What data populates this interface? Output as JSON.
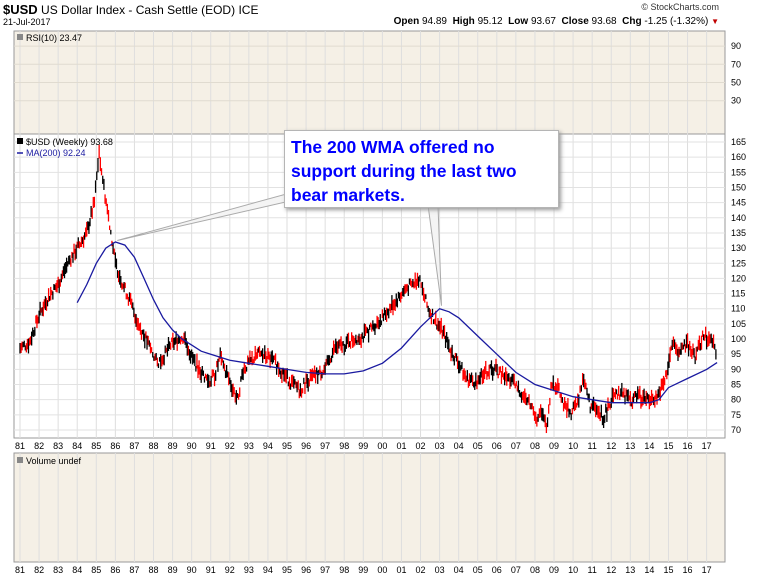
{
  "header": {
    "symbol": "$USD",
    "name": "US Dollar Index - Cash Settle (EOD)",
    "exchange": "ICE",
    "date": "21-Jul-2017",
    "credit": "© StockCharts.com",
    "open_label": "Open",
    "open": "94.89",
    "high_label": "High",
    "high": "95.12",
    "low_label": "Low",
    "low": "93.67",
    "close_label": "Close",
    "close": "93.68",
    "chg_label": "Chg",
    "chg": "-1.25 (-1.32%)"
  },
  "colors": {
    "price_up": "#000000",
    "price_down": "#ff0000",
    "ma": "#1a1aa0",
    "panel_bg": "#f5f0e6",
    "callout_text": "#0000ff"
  },
  "callout": {
    "lines": [
      "The 200 WMA offered no",
      "support during the last two",
      "bear markets."
    ]
  },
  "chart_data": [
    {
      "type": "line",
      "panel": "rsi",
      "legend": "RSI(10) 23.47",
      "ylim": [
        0,
        100
      ],
      "yticks": [
        30,
        50,
        70,
        90
      ],
      "series": []
    },
    {
      "type": "line",
      "panel": "price",
      "legend_title": "$USD (Weekly) 93.68",
      "legend_ma": "MA(200) 92.24",
      "ylim": [
        70,
        165
      ],
      "yticks": [
        70,
        75,
        80,
        85,
        90,
        95,
        100,
        105,
        110,
        115,
        120,
        125,
        130,
        135,
        140,
        145,
        150,
        155,
        160,
        165
      ],
      "x_tick_labels": [
        "81",
        "82",
        "83",
        "84",
        "85",
        "86",
        "87",
        "88",
        "89",
        "90",
        "91",
        "92",
        "93",
        "94",
        "95",
        "96",
        "97",
        "98",
        "99",
        "00",
        "01",
        "02",
        "03",
        "04",
        "05",
        "06",
        "07",
        "08",
        "09",
        "10",
        "11",
        "12",
        "13",
        "14",
        "15",
        "16",
        "17"
      ],
      "x_years": [
        1981,
        1982,
        1983,
        1984,
        1985,
        1986,
        1987,
        1988,
        1989,
        1990,
        1991,
        1992,
        1993,
        1994,
        1995,
        1996,
        1997,
        1998,
        1999,
        2000,
        2001,
        2002,
        2003,
        2004,
        2005,
        2006,
        2007,
        2008,
        2009,
        2010,
        2011,
        2012,
        2013,
        2014,
        2015,
        2016,
        2017
      ],
      "series": [
        {
          "name": "$USD",
          "x": [
            1981.0,
            1981.5,
            1982.0,
            1982.5,
            1983.0,
            1983.5,
            1984.0,
            1984.5,
            1984.9,
            1985.15,
            1985.4,
            1985.7,
            1986.0,
            1986.4,
            1986.8,
            1987.2,
            1987.6,
            1987.9,
            1988.2,
            1988.5,
            1988.9,
            1989.3,
            1989.6,
            1990.0,
            1990.5,
            1990.9,
            1991.2,
            1991.5,
            1992.0,
            1992.4,
            1992.7,
            1993.0,
            1993.5,
            1994.0,
            1994.4,
            1994.9,
            1995.3,
            1995.7,
            1996.0,
            1996.5,
            1997.0,
            1997.5,
            1998.0,
            1998.5,
            1999.0,
            1999.5,
            2000.0,
            2000.5,
            2000.9,
            2001.3,
            2001.6,
            2001.9,
            2002.1,
            2002.4,
            2002.8,
            2003.2,
            2003.6,
            2004.0,
            2004.4,
            2004.9,
            2005.3,
            2005.9,
            2006.3,
            2006.8,
            2007.3,
            2007.8,
            2008.1,
            2008.3,
            2008.6,
            2008.9,
            2009.2,
            2009.5,
            2009.9,
            2010.3,
            2010.5,
            2010.9,
            2011.3,
            2011.6,
            2012.0,
            2012.5,
            2013.0,
            2013.5,
            2014.0,
            2014.4,
            2014.8,
            2015.2,
            2015.5,
            2016.0,
            2016.4,
            2016.9,
            2017.0,
            2017.3,
            2017.55
          ],
          "values": [
            97,
            99,
            108,
            114,
            118,
            125,
            130,
            135,
            145,
            162,
            150,
            138,
            125,
            118,
            112,
            105,
            100,
            96,
            92,
            94,
            98,
            100,
            101,
            94,
            89,
            86,
            88,
            94,
            86,
            80,
            90,
            92,
            95,
            94,
            92,
            88,
            85,
            83,
            86,
            88,
            90,
            97,
            98,
            100,
            101,
            104,
            107,
            111,
            114,
            117,
            118,
            120,
            116,
            110,
            106,
            102,
            96,
            92,
            87,
            86,
            89,
            90,
            88,
            86,
            82,
            78,
            74,
            76,
            71,
            86,
            84,
            78,
            76,
            80,
            88,
            78,
            76,
            74,
            80,
            82,
            80,
            81,
            80,
            81,
            86,
            98,
            96,
            98,
            94,
            102,
            100,
            99,
            94
          ]
        },
        {
          "name": "MA(200)",
          "x": [
            1984.0,
            1984.5,
            1985.0,
            1985.5,
            1986.0,
            1986.5,
            1987.0,
            1987.5,
            1988.0,
            1988.5,
            1989.0,
            1989.5,
            1990.0,
            1990.5,
            1991.0,
            1992.0,
            1993.0,
            1994.0,
            1995.0,
            1996.0,
            1997.0,
            1998.0,
            1999.0,
            2000.0,
            2001.0,
            2002.0,
            2003.0,
            2003.5,
            2004.0,
            2005.0,
            2006.0,
            2007.0,
            2008.0,
            2009.0,
            2010.0,
            2011.0,
            2012.0,
            2013.0,
            2014.0,
            2014.5,
            2015.0,
            2016.0,
            2017.0,
            2017.55
          ],
          "values": [
            112,
            118,
            125,
            130,
            132,
            131,
            127,
            120,
            113,
            107,
            103,
            100,
            98,
            96,
            95,
            93,
            92,
            91,
            90,
            89,
            88.5,
            88.5,
            89.5,
            92,
            97,
            104,
            110,
            109,
            107,
            101,
            95,
            89,
            85,
            83,
            81,
            80,
            79,
            79,
            79,
            80,
            84,
            87,
            90,
            92.24
          ]
        }
      ]
    },
    {
      "type": "bar",
      "panel": "volume",
      "legend": "Volume undef",
      "series": []
    }
  ]
}
